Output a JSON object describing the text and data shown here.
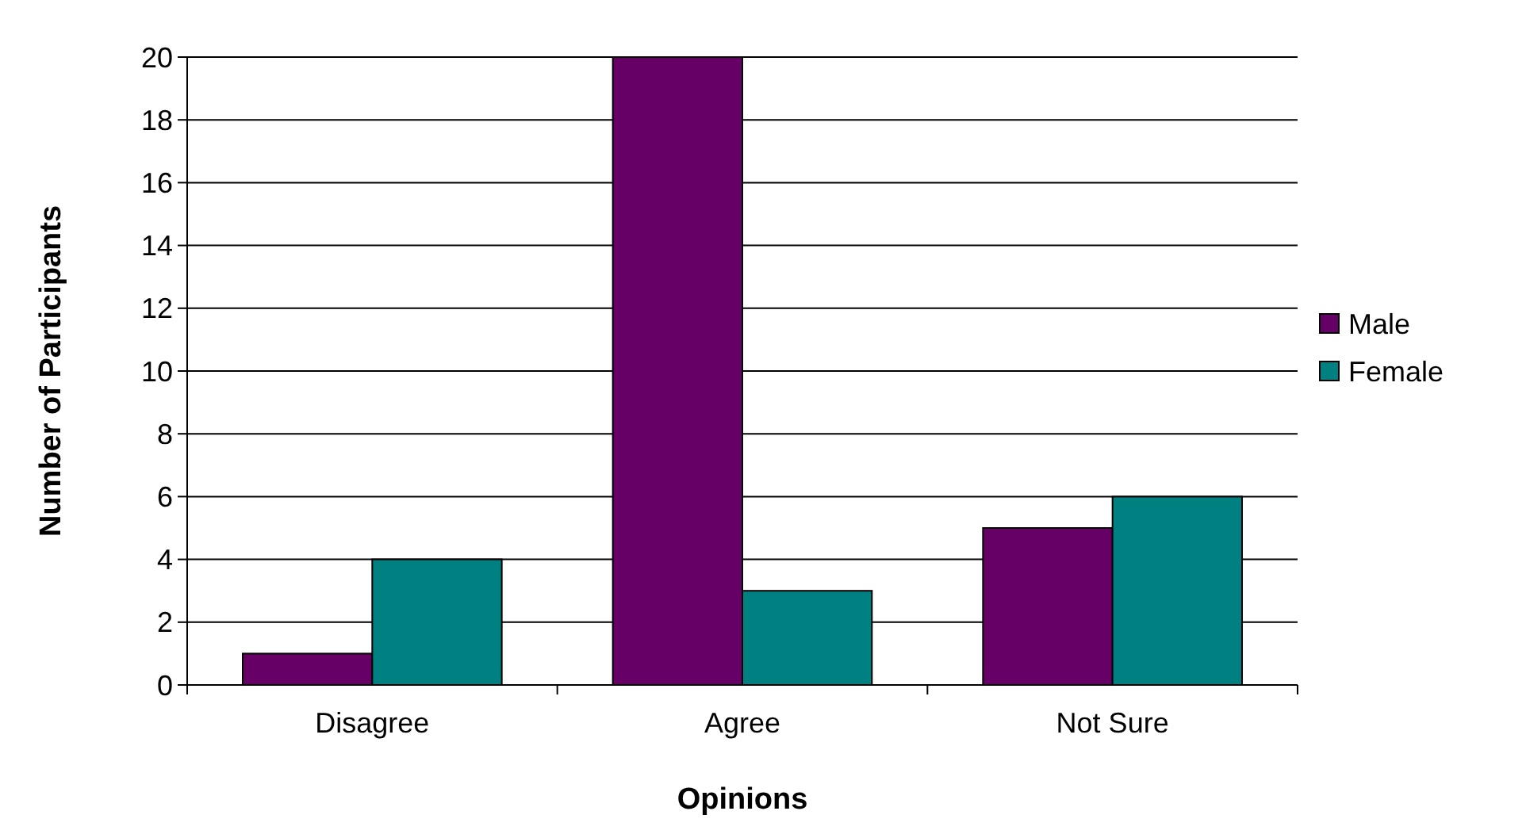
{
  "chart_data": {
    "type": "bar",
    "xlabel": "Opinions",
    "ylabel": "Number of Participants",
    "categories": [
      "Disagree",
      "Agree",
      "Not Sure"
    ],
    "series": [
      {
        "name": "Male",
        "color": "#660066",
        "values": [
          1,
          20,
          5
        ]
      },
      {
        "name": "Female",
        "color": "#008080",
        "values": [
          4,
          3,
          6
        ]
      }
    ],
    "ylim": [
      0,
      20
    ],
    "yticks": [
      0,
      2,
      4,
      6,
      8,
      10,
      12,
      14,
      16,
      18,
      20
    ],
    "grid": "y",
    "legend": "right"
  }
}
